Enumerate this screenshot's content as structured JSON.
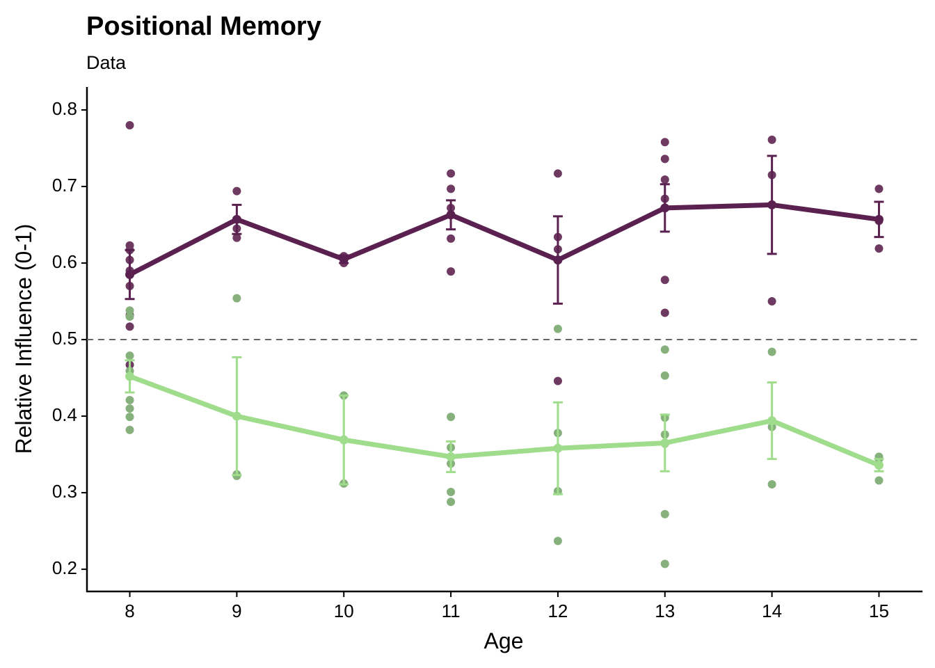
{
  "chart_data": {
    "type": "line",
    "title": "Positional Memory",
    "subtitle": "Data",
    "x_label": "Age",
    "y_label": "Relative Influence (0-1)",
    "x": [
      8,
      9,
      10,
      11,
      12,
      13,
      14,
      15
    ],
    "xlim": [
      7.6,
      15.4
    ],
    "xticks": [
      8,
      9,
      10,
      11,
      12,
      13,
      14,
      15
    ],
    "ylim": [
      0.171,
      0.83
    ],
    "yticks": [
      0.2,
      0.3,
      0.4,
      0.5,
      0.6,
      0.7,
      0.8
    ],
    "reference_line": 0.5,
    "series": [
      {
        "color": "#5a2150",
        "values": [
          0.585,
          0.657,
          0.605,
          0.663,
          0.604,
          0.672,
          0.676,
          0.657
        ],
        "errors": [
          0.032,
          0.019,
          0.005,
          0.019,
          0.057,
          0.031,
          0.064,
          0.023
        ]
      },
      {
        "color": "#9fdc8c",
        "values": [
          0.452,
          0.4,
          0.369,
          0.347,
          0.358,
          0.365,
          0.394,
          0.336
        ],
        "errors": [
          0.021,
          0.077,
          0.058,
          0.02,
          0.06,
          0.037,
          0.05,
          0.008
        ]
      }
    ],
    "points": [
      {
        "color": "#6e3a62",
        "x": [
          8,
          8,
          8,
          8,
          8,
          8,
          8,
          8,
          8,
          9,
          9,
          9,
          10,
          10,
          11,
          11,
          11,
          11,
          11,
          12,
          12,
          12,
          12,
          13,
          13,
          13,
          13,
          13,
          13,
          14,
          14,
          14,
          15,
          15,
          15
        ],
        "y": [
          0.78,
          0.623,
          0.617,
          0.604,
          0.59,
          0.57,
          0.532,
          0.517,
          0.467,
          0.694,
          0.645,
          0.633,
          0.609,
          0.6,
          0.717,
          0.697,
          0.672,
          0.632,
          0.589,
          0.717,
          0.634,
          0.618,
          0.446,
          0.758,
          0.736,
          0.709,
          0.684,
          0.578,
          0.535,
          0.761,
          0.715,
          0.55,
          0.697,
          0.655,
          0.619
        ]
      },
      {
        "color": "#86b07c",
        "x": [
          8,
          8,
          8,
          8,
          8,
          8,
          8,
          8,
          9,
          9,
          9,
          10,
          10,
          11,
          11,
          11,
          11,
          11,
          12,
          12,
          12,
          12,
          13,
          13,
          13,
          13,
          13,
          13,
          13,
          14,
          14,
          14,
          15,
          15,
          15
        ],
        "y": [
          0.538,
          0.53,
          0.479,
          0.459,
          0.421,
          0.41,
          0.399,
          0.382,
          0.554,
          0.324,
          0.322,
          0.427,
          0.312,
          0.399,
          0.359,
          0.338,
          0.301,
          0.288,
          0.514,
          0.378,
          0.302,
          0.237,
          0.487,
          0.453,
          0.398,
          0.376,
          0.364,
          0.272,
          0.207,
          0.484,
          0.386,
          0.311,
          0.347,
          0.344,
          0.316
        ]
      }
    ]
  }
}
